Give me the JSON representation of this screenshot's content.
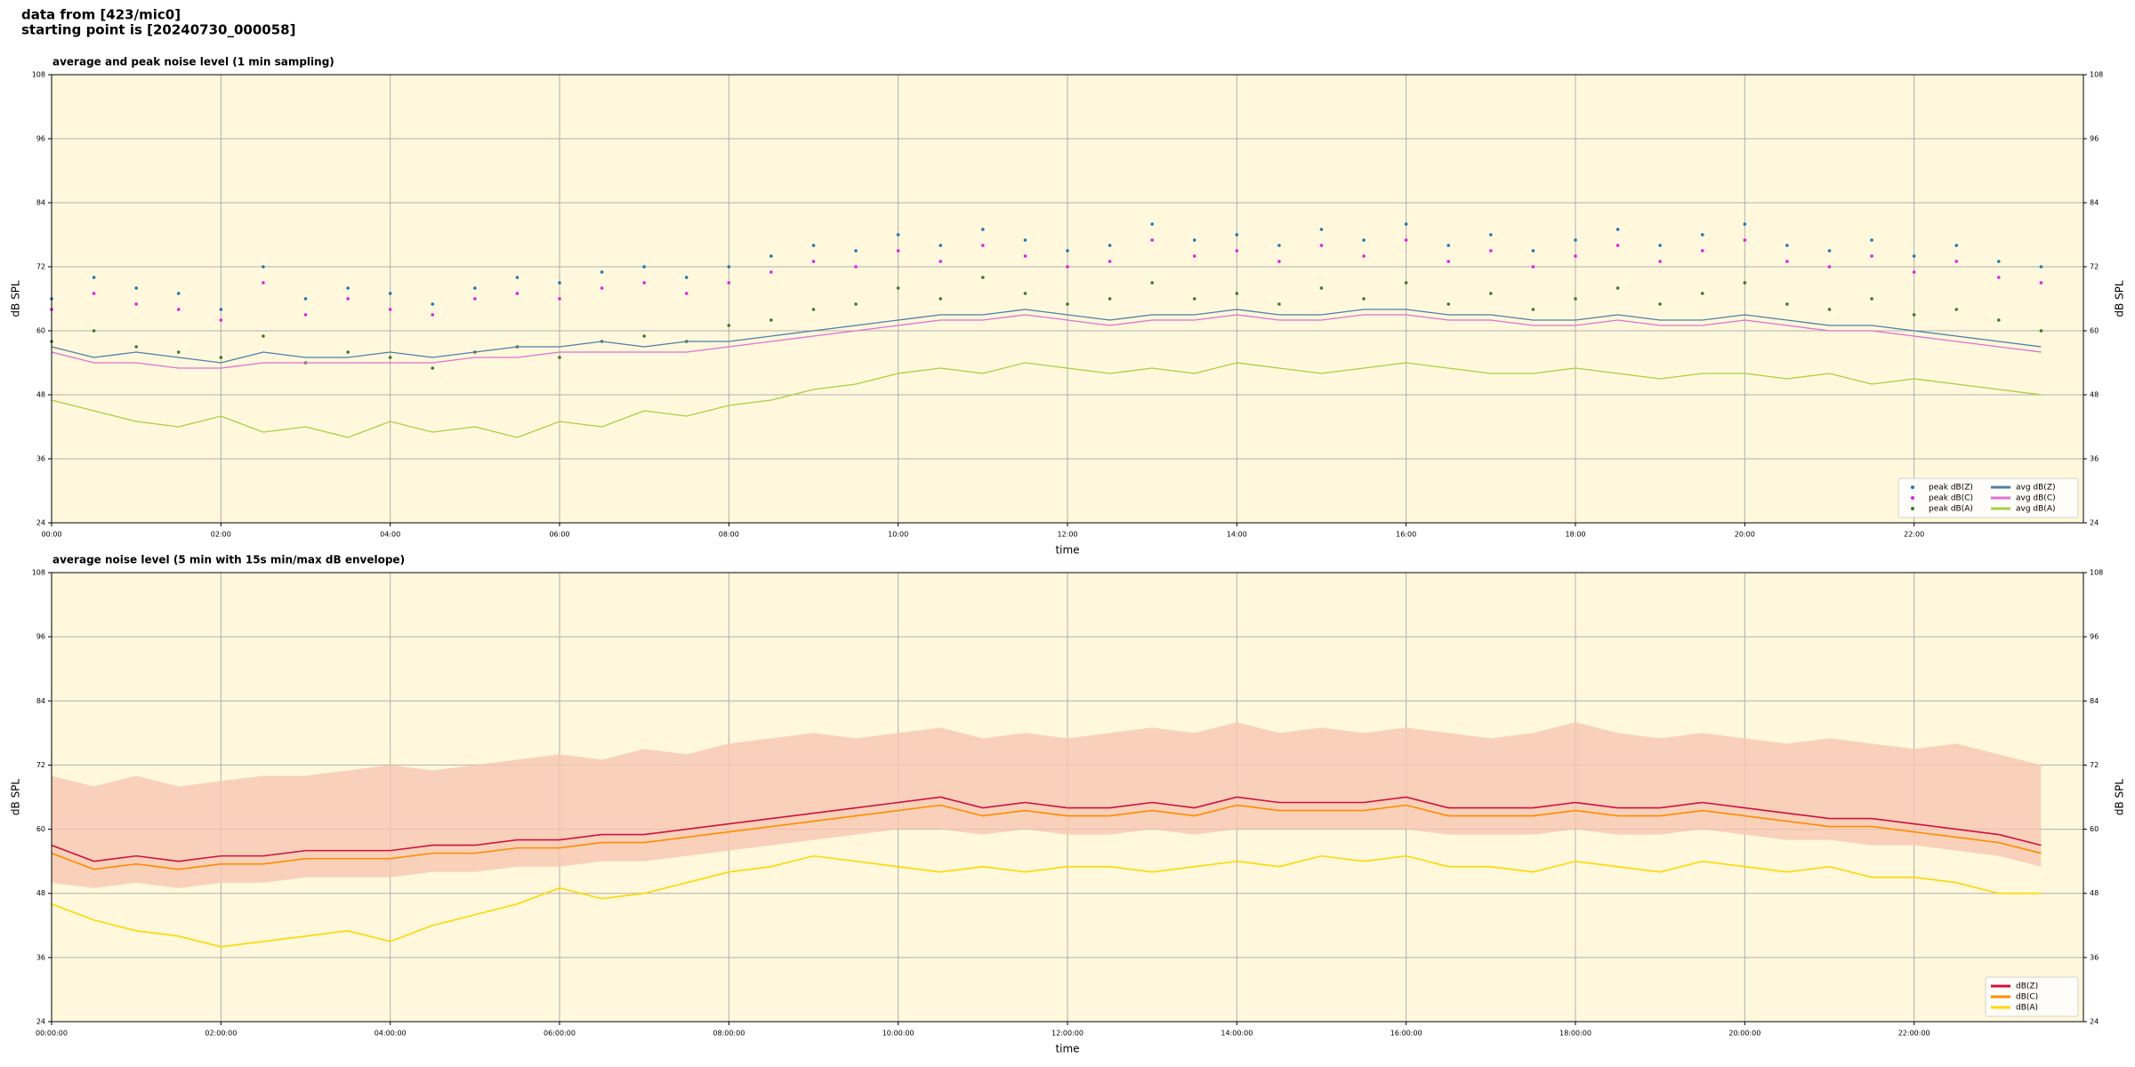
{
  "header": [
    "data from [423/mic0]",
    "starting point is [20240730_000058]"
  ],
  "chart_data": [
    {
      "type": "line",
      "title": "average and peak noise level (1 min sampling)",
      "xlabel": "time",
      "ylabel": "dB SPL",
      "x": [
        0,
        30,
        60,
        90,
        120,
        150,
        180,
        210,
        240,
        270,
        300,
        330,
        360,
        390,
        420,
        450,
        480,
        510,
        540,
        570,
        600,
        630,
        660,
        690,
        720,
        750,
        780,
        810,
        840,
        870,
        900,
        930,
        960,
        990,
        1020,
        1050,
        1080,
        1110,
        1140,
        1170,
        1200,
        1230,
        1260,
        1290,
        1320,
        1350,
        1380,
        1410
      ],
      "xlim": [
        0,
        1440
      ],
      "xticks": [
        {
          "value": 0,
          "label": "00:00"
        },
        {
          "value": 120,
          "label": "02:00"
        },
        {
          "value": 240,
          "label": "04:00"
        },
        {
          "value": 360,
          "label": "06:00"
        },
        {
          "value": 480,
          "label": "08:00"
        },
        {
          "value": 600,
          "label": "10:00"
        },
        {
          "value": 720,
          "label": "12:00"
        },
        {
          "value": 840,
          "label": "14:00"
        },
        {
          "value": 960,
          "label": "16:00"
        },
        {
          "value": 1080,
          "label": "18:00"
        },
        {
          "value": 1200,
          "label": "20:00"
        },
        {
          "value": 1320,
          "label": "22:00"
        }
      ],
      "ylim": [
        24,
        108
      ],
      "yticks": [
        24,
        36,
        48,
        60,
        72,
        84,
        96,
        108
      ],
      "grid": true,
      "legend": "lower right",
      "background": "#fff8dc",
      "series": [
        {
          "name": "peak dB(Z)",
          "kind": "scatter",
          "color": "#1f77b4",
          "values": [
            66,
            70,
            68,
            67,
            64,
            72,
            66,
            68,
            67,
            65,
            68,
            70,
            69,
            71,
            72,
            70,
            72,
            74,
            76,
            75,
            78,
            76,
            79,
            77,
            75,
            76,
            80,
            77,
            78,
            76,
            79,
            77,
            80,
            76,
            78,
            75,
            77,
            79,
            76,
            78,
            80,
            76,
            75,
            77,
            74,
            76,
            73,
            72
          ]
        },
        {
          "name": "peak dB(C)",
          "kind": "scatter",
          "color": "#e020e0",
          "values": [
            64,
            67,
            65,
            64,
            62,
            69,
            63,
            66,
            64,
            63,
            66,
            67,
            66,
            68,
            69,
            67,
            69,
            71,
            73,
            72,
            75,
            73,
            76,
            74,
            72,
            73,
            77,
            74,
            75,
            73,
            76,
            74,
            77,
            73,
            75,
            72,
            74,
            76,
            73,
            75,
            77,
            73,
            72,
            74,
            71,
            73,
            70,
            69
          ]
        },
        {
          "name": "peak dB(A)",
          "kind": "scatter",
          "color": "#3c7a28",
          "values": [
            58,
            60,
            57,
            56,
            55,
            59,
            54,
            56,
            55,
            53,
            56,
            57,
            55,
            58,
            59,
            58,
            61,
            62,
            64,
            65,
            68,
            66,
            70,
            67,
            65,
            66,
            69,
            66,
            67,
            65,
            68,
            66,
            69,
            65,
            67,
            64,
            66,
            68,
            65,
            67,
            69,
            65,
            64,
            66,
            63,
            64,
            62,
            60
          ]
        },
        {
          "name": "avg dB(Z)",
          "kind": "line",
          "color": "#4e7fa8",
          "values": [
            57,
            55,
            56,
            55,
            54,
            56,
            55,
            55,
            56,
            55,
            56,
            57,
            57,
            58,
            57,
            58,
            58,
            59,
            60,
            61,
            62,
            63,
            63,
            64,
            63,
            62,
            63,
            63,
            64,
            63,
            63,
            64,
            64,
            63,
            63,
            62,
            62,
            63,
            62,
            62,
            63,
            62,
            61,
            61,
            60,
            59,
            58,
            57
          ]
        },
        {
          "name": "avg dB(C)",
          "kind": "line",
          "color": "#e070d0",
          "values": [
            56,
            54,
            54,
            53,
            53,
            54,
            54,
            54,
            54,
            54,
            55,
            55,
            56,
            56,
            56,
            56,
            57,
            58,
            59,
            60,
            61,
            62,
            62,
            63,
            62,
            61,
            62,
            62,
            63,
            62,
            62,
            63,
            63,
            62,
            62,
            61,
            61,
            62,
            61,
            61,
            62,
            61,
            60,
            60,
            59,
            58,
            57,
            56
          ]
        },
        {
          "name": "avg dB(A)",
          "kind": "line",
          "color": "#a8d040",
          "values": [
            47,
            45,
            43,
            42,
            44,
            41,
            42,
            40,
            43,
            41,
            42,
            40,
            43,
            42,
            45,
            44,
            46,
            47,
            49,
            50,
            52,
            53,
            52,
            54,
            53,
            52,
            53,
            52,
            54,
            53,
            52,
            53,
            54,
            53,
            52,
            52,
            53,
            52,
            51,
            52,
            52,
            51,
            52,
            50,
            51,
            50,
            49,
            48
          ]
        }
      ]
    },
    {
      "type": "line",
      "title": "average noise level (5 min with 15s min/max dB envelope)",
      "xlabel": "time",
      "ylabel": "dB SPL",
      "x": [
        0,
        30,
        60,
        90,
        120,
        150,
        180,
        210,
        240,
        270,
        300,
        330,
        360,
        390,
        420,
        450,
        480,
        510,
        540,
        570,
        600,
        630,
        660,
        690,
        720,
        750,
        780,
        810,
        840,
        870,
        900,
        930,
        960,
        990,
        1020,
        1050,
        1080,
        1110,
        1140,
        1170,
        1200,
        1230,
        1260,
        1290,
        1320,
        1350,
        1380,
        1410
      ],
      "xlim": [
        0,
        1440
      ],
      "xticks": [
        {
          "value": 0,
          "label": "00:00:00"
        },
        {
          "value": 120,
          "label": "02:00:00"
        },
        {
          "value": 240,
          "label": "04:00:00"
        },
        {
          "value": 360,
          "label": "06:00:00"
        },
        {
          "value": 480,
          "label": "08:00:00"
        },
        {
          "value": 600,
          "label": "10:00:00"
        },
        {
          "value": 720,
          "label": "12:00:00"
        },
        {
          "value": 840,
          "label": "14:00:00"
        },
        {
          "value": 960,
          "label": "16:00:00"
        },
        {
          "value": 1080,
          "label": "18:00:00"
        },
        {
          "value": 1200,
          "label": "20:00:00"
        },
        {
          "value": 1320,
          "label": "22:00:00"
        }
      ],
      "ylim": [
        24,
        108
      ],
      "yticks": [
        24,
        36,
        48,
        60,
        72,
        84,
        96,
        108
      ],
      "grid": true,
      "legend": "lower right",
      "background": "#fff8dc",
      "envelope": {
        "color": "#f7c6b0",
        "upper": [
          70,
          68,
          70,
          68,
          69,
          70,
          70,
          71,
          72,
          71,
          72,
          73,
          74,
          73,
          75,
          74,
          76,
          77,
          78,
          77,
          78,
          79,
          77,
          78,
          77,
          78,
          79,
          78,
          80,
          78,
          79,
          78,
          79,
          78,
          77,
          78,
          80,
          78,
          77,
          78,
          77,
          76,
          77,
          76,
          75,
          76,
          74,
          72
        ],
        "lower": [
          50,
          49,
          50,
          49,
          50,
          50,
          51,
          51,
          51,
          52,
          52,
          53,
          53,
          54,
          54,
          55,
          56,
          57,
          58,
          59,
          60,
          60,
          59,
          60,
          59,
          59,
          60,
          59,
          60,
          60,
          60,
          60,
          60,
          59,
          59,
          59,
          60,
          59,
          59,
          60,
          59,
          58,
          58,
          57,
          57,
          56,
          55,
          53
        ]
      },
      "series": [
        {
          "name": "dB(Z)",
          "kind": "line",
          "color": "#d01040",
          "values": [
            57,
            54,
            55,
            54,
            55,
            55,
            56,
            56,
            56,
            57,
            57,
            58,
            58,
            59,
            59,
            60,
            61,
            62,
            63,
            64,
            65,
            66,
            64,
            65,
            64,
            64,
            65,
            64,
            66,
            65,
            65,
            65,
            66,
            64,
            64,
            64,
            65,
            64,
            64,
            65,
            64,
            63,
            62,
            62,
            61,
            60,
            59,
            57
          ]
        },
        {
          "name": "dB(C)",
          "kind": "line",
          "color": "#ff8c00",
          "values": [
            55.5,
            52.5,
            53.5,
            52.5,
            53.5,
            53.5,
            54.5,
            54.5,
            54.5,
            55.5,
            55.5,
            56.5,
            56.5,
            57.5,
            57.5,
            58.5,
            59.5,
            60.5,
            61.5,
            62.5,
            63.5,
            64.5,
            62.5,
            63.5,
            62.5,
            62.5,
            63.5,
            62.5,
            64.5,
            63.5,
            63.5,
            63.5,
            64.5,
            62.5,
            62.5,
            62.5,
            63.5,
            62.5,
            62.5,
            63.5,
            62.5,
            61.5,
            60.5,
            60.5,
            59.5,
            58.5,
            57.5,
            55.5
          ]
        },
        {
          "name": "dB(A)",
          "kind": "line",
          "color": "#ffd700",
          "values": [
            46,
            43,
            41,
            40,
            38,
            39,
            40,
            41,
            39,
            42,
            44,
            46,
            49,
            47,
            48,
            50,
            52,
            53,
            55,
            54,
            53,
            52,
            53,
            52,
            53,
            53,
            52,
            53,
            54,
            53,
            55,
            54,
            55,
            53,
            53,
            52,
            54,
            53,
            52,
            54,
            53,
            52,
            53,
            51,
            51,
            50,
            48,
            48
          ]
        }
      ]
    }
  ]
}
